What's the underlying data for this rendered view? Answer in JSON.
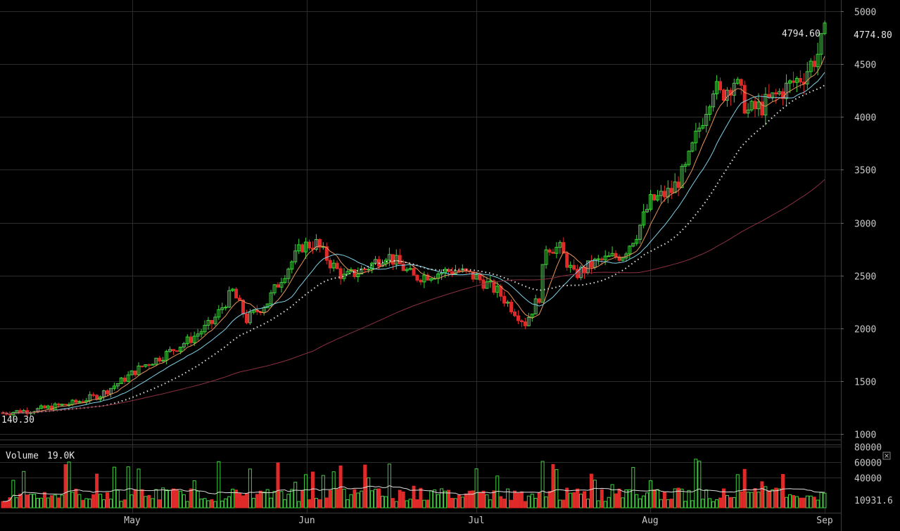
{
  "chart_data": [
    {
      "type": "candlestick",
      "title": "",
      "ylim": [
        1000,
        5000
      ],
      "y_ticks": [
        "5000",
        "4500",
        "4000",
        "3500",
        "3000",
        "2500",
        "2000",
        "1500",
        "1000"
      ],
      "x_ticks": [
        "May",
        "Jun",
        "Jul",
        "Aug",
        "Sep"
      ],
      "last_price_label": "4774.80",
      "high_label": "4794.60",
      "low_label": "140.30",
      "ma_series": [
        {
          "name": "",
          "color": "#e6955a"
        },
        {
          "name": "",
          "color": "#7fd0e6"
        },
        {
          "name": "",
          "color": "#dddddd",
          "style": "dotted"
        },
        {
          "name": "",
          "color": "#8a3040"
        }
      ],
      "anchors": [
        [
          0,
          1200
        ],
        [
          10,
          1230
        ],
        [
          20,
          1290
        ],
        [
          28,
          1370
        ],
        [
          34,
          1500
        ],
        [
          40,
          1640
        ],
        [
          46,
          1740
        ],
        [
          54,
          1900
        ],
        [
          60,
          2050
        ],
        [
          66,
          2350
        ],
        [
          70,
          2080
        ],
        [
          76,
          2250
        ],
        [
          80,
          2480
        ],
        [
          86,
          2780
        ],
        [
          90,
          2800
        ],
        [
          94,
          2620
        ],
        [
          98,
          2480
        ],
        [
          104,
          2560
        ],
        [
          110,
          2700
        ],
        [
          114,
          2600
        ],
        [
          118,
          2480
        ],
        [
          124,
          2520
        ],
        [
          130,
          2550
        ],
        [
          136,
          2480
        ],
        [
          142,
          2350
        ],
        [
          146,
          2200
        ],
        [
          150,
          2050
        ],
        [
          154,
          2300
        ],
        [
          156,
          2780
        ],
        [
          160,
          2750
        ],
        [
          164,
          2500
        ],
        [
          170,
          2620
        ],
        [
          178,
          2700
        ],
        [
          182,
          2900
        ],
        [
          186,
          3200
        ],
        [
          192,
          3300
        ],
        [
          196,
          3500
        ],
        [
          200,
          3900
        ],
        [
          204,
          4300
        ],
        [
          206,
          4200
        ],
        [
          210,
          4350
        ],
        [
          214,
          4050
        ],
        [
          218,
          4100
        ],
        [
          222,
          4200
        ],
        [
          226,
          4300
        ],
        [
          230,
          4400
        ],
        [
          234,
          4600
        ],
        [
          236,
          4775
        ]
      ]
    },
    {
      "type": "bar",
      "title": "Volume",
      "value_label": "19.0K",
      "last_value_label": "10931.6",
      "ylim": [
        0,
        80000
      ],
      "y_ticks": [
        "80000",
        "60000",
        "40000"
      ],
      "up_color": "#3fd33f",
      "down_color": "#e02a2a"
    }
  ],
  "colors": {
    "background": "#000000",
    "grid": "#2c2c2c",
    "up": "#3fd33f",
    "down": "#e02a2a"
  },
  "icons": {
    "close": "close-icon"
  }
}
